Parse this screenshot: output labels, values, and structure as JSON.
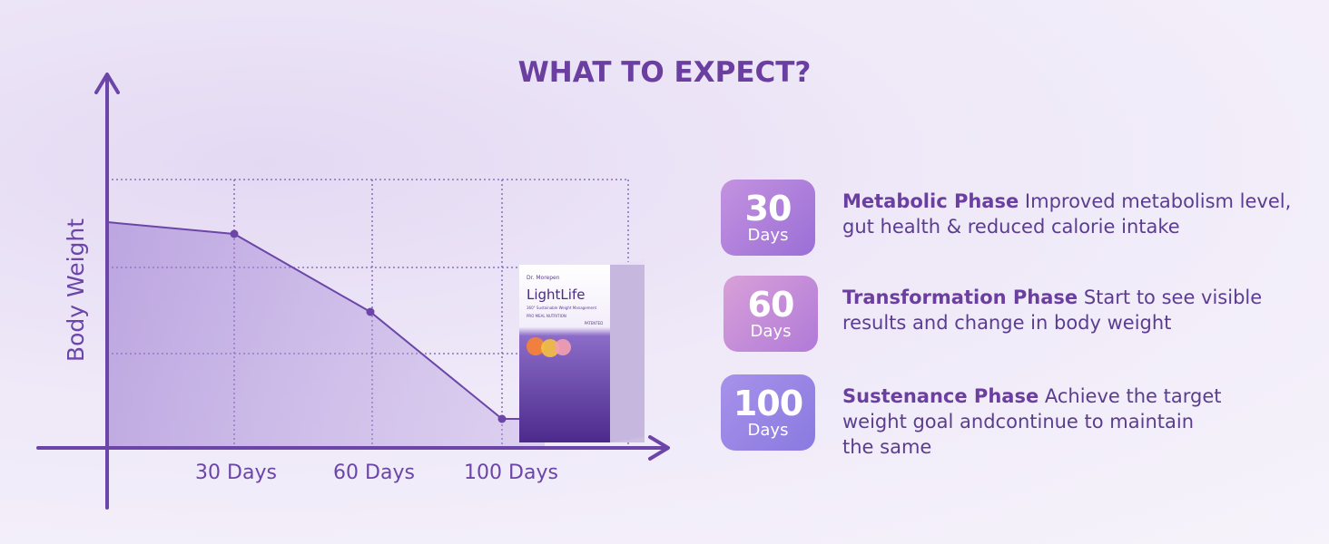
{
  "header": {
    "title": "WHAT TO EXPECT?"
  },
  "graph": {
    "y_axis_label": "Body Weight",
    "x_labels": [
      "30 Days",
      "60 Days",
      "100 Days"
    ]
  },
  "product": {
    "brand": "Dr. Morepen",
    "name": "LightLife",
    "tagline": "360° Sustainable Weight Management",
    "category": "PRO MEAL NUTRITION",
    "badge": "PATENTED"
  },
  "phases": [
    {
      "number": "30",
      "unit": "Days",
      "heading": "Metabolic Phase",
      "text": "Improved metabolism level, gut health & reduced calorie intake"
    },
    {
      "number": "60",
      "unit": "Days",
      "heading": "Transformation Phase",
      "text": "Start to see visible results and change in body weight"
    },
    {
      "number": "100",
      "unit": "Days",
      "heading": "Sustenance Phase",
      "text": "Achieve the target weight goal andcontinue to maintain the same"
    }
  ]
}
